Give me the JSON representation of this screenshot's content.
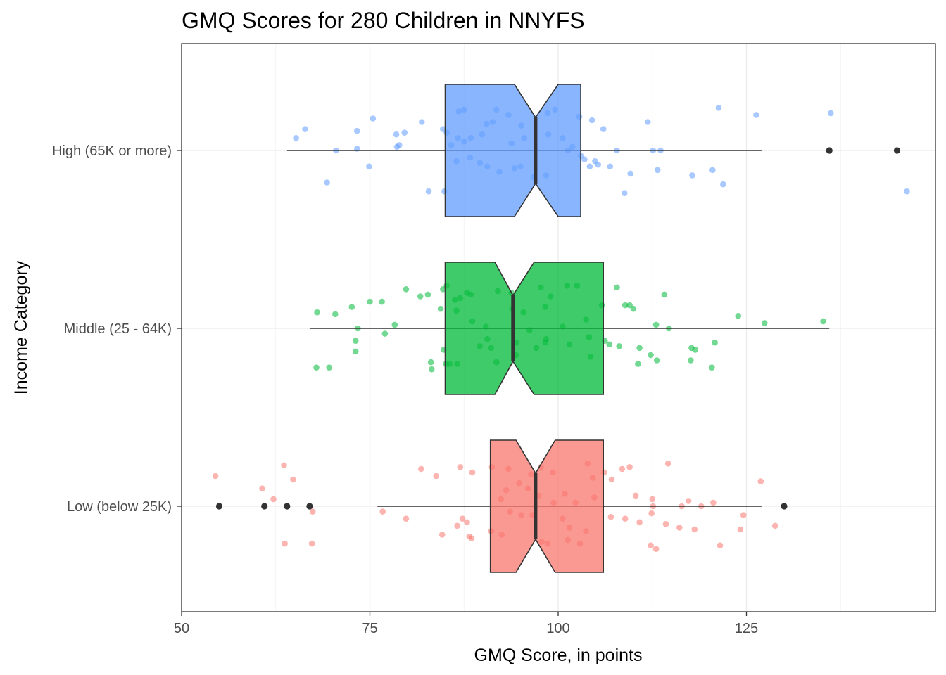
{
  "chart_data": {
    "type": "boxplot",
    "orientation": "horizontal",
    "notched": true,
    "jitter_points": true,
    "title": "GMQ Scores for 280 Children in NNYFS",
    "xlabel": "GMQ Score, in points",
    "ylabel": "Income Category",
    "xlim": [
      50,
      150
    ],
    "x_ticks": [
      50,
      75,
      100,
      125
    ],
    "x_tick_labels": [
      "50",
      "75",
      "100",
      "125"
    ],
    "grid": true,
    "legend": "none",
    "categories": [
      "High (65K or more)",
      "Middle (25 - 64K)",
      "Low (below 25K)"
    ],
    "series": [
      {
        "name": "High (65K or more)",
        "color": "#619CFF",
        "box": {
          "whisker_low": 64,
          "q1": 85,
          "median": 97,
          "q3": 103,
          "whisker_high": 127,
          "notch_low": 94.2,
          "notch_high": 100
        },
        "outliers": [
          136,
          145
        ],
        "points": [
          [
            121.3,
            0.24
          ],
          [
            126.3,
            0.2
          ],
          [
            136.2,
            0.21
          ],
          [
            66.4,
            0.12
          ],
          [
            65.2,
            0.07
          ],
          [
            75.4,
            0.18
          ],
          [
            73.3,
            0.11
          ],
          [
            78.5,
            0.09
          ],
          [
            79.6,
            0.1
          ],
          [
            81.9,
            0.16
          ],
          [
            84.7,
            0.12
          ],
          [
            85.2,
            0.1
          ],
          [
            86.8,
            0.22
          ],
          [
            87.5,
            0.23
          ],
          [
            91.8,
            0.23
          ],
          [
            93.4,
            0.2
          ],
          [
            99.6,
            0.23
          ],
          [
            98.6,
            0.21
          ],
          [
            102.8,
            0.19
          ],
          [
            104.5,
            0.17
          ],
          [
            106.0,
            0.12
          ],
          [
            111.9,
            0.16
          ],
          [
            70.5,
            0.0
          ],
          [
            73.3,
            0.01
          ],
          [
            78.6,
            0.02
          ],
          [
            78.9,
            0.03
          ],
          [
            87.5,
            0.05
          ],
          [
            88.4,
            0.07
          ],
          [
            89.9,
            0.09
          ],
          [
            93.8,
            0.04
          ],
          [
            95.5,
            0.07
          ],
          [
            100.6,
            0.07
          ],
          [
            101.9,
            0.02
          ],
          [
            101.3,
            0.0
          ],
          [
            103.0,
            -0.03
          ],
          [
            107.8,
            0.0
          ],
          [
            112.6,
            0.0
          ],
          [
            113.6,
            0.0
          ],
          [
            104.9,
            -0.06
          ],
          [
            103.5,
            -0.05
          ],
          [
            104.2,
            -0.09
          ],
          [
            106.9,
            -0.09
          ],
          [
            105.3,
            -0.08
          ],
          [
            109.6,
            -0.13
          ],
          [
            113.2,
            -0.11
          ],
          [
            117.8,
            -0.14
          ],
          [
            120.5,
            -0.11
          ],
          [
            121.9,
            -0.19
          ],
          [
            74.9,
            -0.09
          ],
          [
            69.3,
            -0.18
          ],
          [
            82.8,
            -0.23
          ],
          [
            84.9,
            -0.23
          ],
          [
            108.8,
            -0.24
          ],
          [
            146.3,
            -0.23
          ],
          [
            86.5,
            -0.06
          ],
          [
            88.3,
            -0.04
          ],
          [
            90.6,
            -0.09
          ],
          [
            92.2,
            -0.12
          ],
          [
            95.0,
            -0.09
          ],
          [
            96.7,
            -0.15
          ],
          [
            98.4,
            -0.14
          ],
          [
            86.7,
            0.07
          ],
          [
            91.3,
            0.16
          ],
          [
            90.5,
            0.15
          ],
          [
            95.1,
            0.14
          ],
          [
            98.7,
            0.09
          ],
          [
            85.8,
            0.03
          ],
          [
            89.6,
            -0.07
          ],
          [
            94.2,
            -0.1
          ]
        ]
      },
      {
        "name": "Middle (25 - 64K)",
        "color": "#00BA38",
        "box": {
          "whisker_low": 67,
          "q1": 85,
          "median": 94,
          "q3": 106,
          "whisker_high": 136,
          "notch_low": 91.6,
          "notch_high": 96.8
        },
        "outliers": [],
        "points": [
          [
            79.8,
            0.22
          ],
          [
            81.7,
            0.18
          ],
          [
            82.7,
            0.19
          ],
          [
            85.2,
            0.24
          ],
          [
            84.7,
            0.22
          ],
          [
            87.9,
            0.2
          ],
          [
            88.4,
            0.19
          ],
          [
            87.0,
            0.17
          ],
          [
            86.3,
            0.16
          ],
          [
            92.0,
            0.21
          ],
          [
            93.8,
            0.2
          ],
          [
            97.7,
            0.23
          ],
          [
            99.0,
            0.18
          ],
          [
            101.2,
            0.24
          ],
          [
            102.5,
            0.24
          ],
          [
            107.8,
            0.23
          ],
          [
            109.5,
            0.13
          ],
          [
            114.1,
            0.19
          ],
          [
            76.6,
            0.15
          ],
          [
            75.0,
            0.15
          ],
          [
            72.6,
            0.12
          ],
          [
            70.4,
            0.08
          ],
          [
            68.0,
            0.09
          ],
          [
            84.4,
            0.11
          ],
          [
            86.5,
            0.1
          ],
          [
            93.9,
            0.11
          ],
          [
            98.3,
            0.12
          ],
          [
            105.8,
            0.13
          ],
          [
            108.9,
            0.13
          ],
          [
            110.0,
            0.11
          ],
          [
            123.9,
            0.07
          ],
          [
            135.2,
            0.04
          ],
          [
            127.4,
            0.03
          ],
          [
            114.7,
            0.0
          ],
          [
            113.0,
            0.02
          ],
          [
            78.3,
            0.02
          ],
          [
            77.0,
            -0.03
          ],
          [
            73.4,
            0.0
          ],
          [
            73.1,
            -0.07
          ],
          [
            88.6,
            0.04
          ],
          [
            90.4,
            0.01
          ],
          [
            95.4,
            0.09
          ],
          [
            96.2,
            -0.01
          ],
          [
            100.6,
            0.01
          ],
          [
            103.7,
            0.05
          ],
          [
            104.1,
            -0.05
          ],
          [
            106.2,
            -0.07
          ],
          [
            106.8,
            -0.09
          ],
          [
            108.1,
            -0.1
          ],
          [
            117.7,
            -0.11
          ],
          [
            118.2,
            -0.12
          ],
          [
            120.8,
            -0.08
          ],
          [
            110.8,
            -0.11
          ],
          [
            112.3,
            -0.15
          ],
          [
            113.1,
            -0.18
          ],
          [
            117.6,
            -0.18
          ],
          [
            120.4,
            -0.22
          ],
          [
            110.6,
            -0.2
          ],
          [
            84.8,
            -0.12
          ],
          [
            73.1,
            -0.13
          ],
          [
            89.6,
            -0.1
          ],
          [
            98.3,
            -0.08
          ],
          [
            97.1,
            -0.11
          ],
          [
            94.4,
            -0.15
          ],
          [
            91.1,
            -0.11
          ],
          [
            90.6,
            -0.06
          ],
          [
            94.4,
            -0.08
          ],
          [
            98.4,
            -0.06
          ],
          [
            101.5,
            -0.09
          ],
          [
            104.3,
            -0.16
          ],
          [
            86.6,
            -0.2
          ],
          [
            85.1,
            -0.2
          ],
          [
            91.8,
            -0.19
          ],
          [
            83.1,
            -0.19
          ],
          [
            67.9,
            -0.22
          ],
          [
            69.6,
            -0.22
          ],
          [
            83.2,
            -0.23
          ],
          [
            85.6,
            -0.2
          ]
        ]
      },
      {
        "name": "Low (below 25K)",
        "color": "#F8766D",
        "box": {
          "whisker_low": 76,
          "q1": 91,
          "median": 97,
          "q3": 106,
          "whisker_high": 127,
          "notch_low": 94.4,
          "notch_high": 99.6
        },
        "outliers": [
          55,
          61,
          64,
          67,
          130
        ],
        "points": [
          [
            63.6,
            0.23
          ],
          [
            54.5,
            0.17
          ],
          [
            60.7,
            0.1
          ],
          [
            62.2,
            0.04
          ],
          [
            64.8,
            0.15
          ],
          [
            81.8,
            0.21
          ],
          [
            83.8,
            0.17
          ],
          [
            87.0,
            0.22
          ],
          [
            88.6,
            0.19
          ],
          [
            91.2,
            0.22
          ],
          [
            93.4,
            0.21
          ],
          [
            96.4,
            0.18
          ],
          [
            97.7,
            0.22
          ],
          [
            99.3,
            0.19
          ],
          [
            103.9,
            0.24
          ],
          [
            106.1,
            0.19
          ],
          [
            107.1,
            0.15
          ],
          [
            108.5,
            0.21
          ],
          [
            109.5,
            0.22
          ],
          [
            114.6,
            0.24
          ],
          [
            126.9,
            0.14
          ],
          [
            110.3,
            0.06
          ],
          [
            112.5,
            0.04
          ],
          [
            117.3,
            0.03
          ],
          [
            112.6,
            0.0
          ],
          [
            116.4,
            0.0
          ],
          [
            119.0,
            0.0
          ],
          [
            120.6,
            0.02
          ],
          [
            76.7,
            -0.03
          ],
          [
            67.4,
            -0.03
          ],
          [
            79.8,
            -0.07
          ],
          [
            86.6,
            -0.11
          ],
          [
            87.3,
            -0.07
          ],
          [
            87.9,
            -0.09
          ],
          [
            88.2,
            -0.17
          ],
          [
            88.5,
            -0.18
          ],
          [
            84.6,
            -0.16
          ],
          [
            95.1,
            -0.05
          ],
          [
            96.6,
            -0.05
          ],
          [
            99.4,
            0.02
          ],
          [
            100.9,
            0.07
          ],
          [
            102.3,
            0.02
          ],
          [
            100.6,
            -0.07
          ],
          [
            101.5,
            -0.12
          ],
          [
            103.7,
            -0.14
          ],
          [
            107.0,
            -0.06
          ],
          [
            108.9,
            -0.07
          ],
          [
            110.8,
            -0.09
          ],
          [
            112.4,
            -0.04
          ],
          [
            114.3,
            -0.1
          ],
          [
            116.1,
            -0.12
          ],
          [
            118.1,
            -0.13
          ],
          [
            124.2,
            -0.13
          ],
          [
            124.6,
            -0.05
          ],
          [
            128.8,
            -0.11
          ],
          [
            63.7,
            -0.21
          ],
          [
            67.3,
            -0.21
          ],
          [
            112.3,
            -0.22
          ],
          [
            113.0,
            -0.24
          ],
          [
            121.5,
            -0.22
          ],
          [
            91.1,
            -0.14
          ],
          [
            92.5,
            -0.16
          ],
          [
            97.8,
            -0.2
          ],
          [
            98.6,
            -0.21
          ],
          [
            101.3,
            -0.19
          ],
          [
            102.9,
            -0.21
          ],
          [
            92.4,
            0.04
          ],
          [
            93.1,
            0.09
          ],
          [
            94.8,
            0.13
          ],
          [
            97.4,
            0.06
          ],
          [
            93.6,
            -0.03
          ],
          [
            96.0,
            0.1
          ],
          [
            104.8,
            0.05
          ],
          [
            104.6,
            0.16
          ]
        ]
      }
    ]
  }
}
